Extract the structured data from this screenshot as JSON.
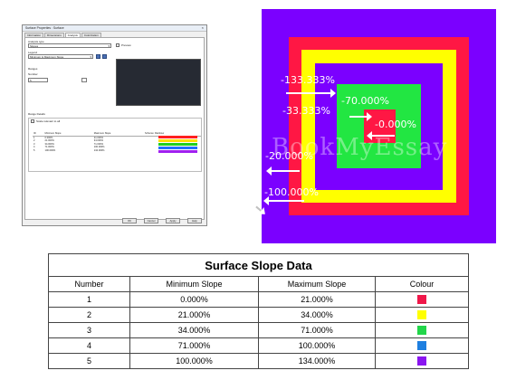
{
  "dialog": {
    "title": "Surface Properties : Surface",
    "tabs": [
      "Information",
      "Dimensions",
      "Analysis",
      "Colorization"
    ],
    "analysis_type_label": "Analysis type",
    "analysis_type_value": "Slopes",
    "legend_label": "Legend",
    "legend_value": "Minimum & Maximum Slope",
    "preview_label": "Preview",
    "ranges_label": "Ranges",
    "number_label": "Number",
    "number_value": "5",
    "range_details_label": "Range Details",
    "elevation_note": "Scale relevant to all",
    "columns": [
      "ID",
      "Minimum Slope",
      "Maximum Slope",
      "Scheme: Rainbow"
    ],
    "rows": [
      [
        "1",
        "0.000%",
        "21.000%"
      ],
      [
        "2",
        "21.000%",
        "34.000%"
      ],
      [
        "3",
        "34.000%",
        "71.000%"
      ],
      [
        "4",
        "71.000%",
        "100.000%"
      ],
      [
        "5",
        "100.000%",
        "134.000%"
      ]
    ],
    "buttons": [
      "OK",
      "Cancel",
      "Apply",
      "Help"
    ]
  },
  "diagram": {
    "labels": {
      "outer": "-133.333%",
      "middle": "-33.333%",
      "green": "-70.000%",
      "center": "-0.000%",
      "lower1": "-20.000%",
      "lower2": "-100.000%"
    },
    "watermark": "BookMyEssay",
    "colors": {
      "purple": "#7b00ff",
      "red": "#ff1744",
      "yellow": "#ffff00",
      "green": "#22e642",
      "center": "#ff1744"
    }
  },
  "table": {
    "title": "Surface Slope Data",
    "headers": [
      "Number",
      "Minimum Slope",
      "Maximum Slope",
      "Colour"
    ],
    "rows": [
      {
        "number": "1",
        "min": "0.000%",
        "max": "21.000%",
        "color": "#f0184a"
      },
      {
        "number": "2",
        "min": "21.000%",
        "max": "34.000%",
        "color": "#ffff00"
      },
      {
        "number": "3",
        "min": "34.000%",
        "max": "71.000%",
        "color": "#22d64a"
      },
      {
        "number": "4",
        "min": "71.000%",
        "max": "100.000%",
        "color": "#1e7fe0"
      },
      {
        "number": "5",
        "min": "100.000%",
        "max": "134.000%",
        "color": "#8a16f0"
      }
    ]
  }
}
